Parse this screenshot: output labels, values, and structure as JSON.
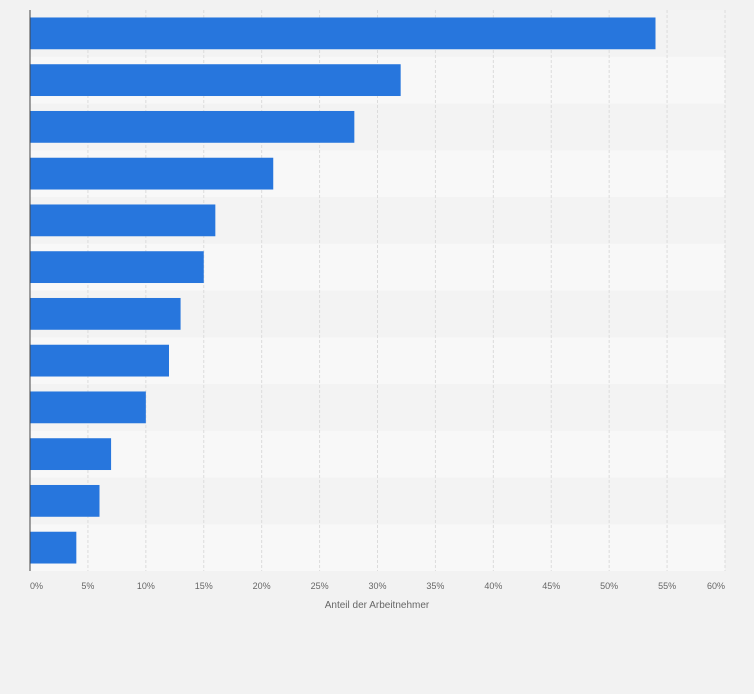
{
  "chart_data": {
    "type": "bar",
    "orientation": "horizontal",
    "title": "",
    "xlabel": "Anteil der Arbeitnehmer",
    "ylabel": "",
    "xlim": [
      0,
      60
    ],
    "tick_labels": [
      "0%",
      "5%",
      "10%",
      "15%",
      "20%",
      "25%",
      "30%",
      "35%",
      "40%",
      "45%",
      "50%",
      "55%",
      "60%"
    ],
    "categories": [
      "",
      "",
      "",
      "",
      "",
      "",
      "",
      "",
      "",
      "",
      "",
      ""
    ],
    "values": [
      54,
      32,
      28,
      21,
      16,
      15,
      13,
      12,
      10,
      7,
      6,
      4
    ],
    "value_unit": "%",
    "grid": true,
    "legend": "none",
    "colors": {
      "bar": "#2776dd",
      "background": "#f2f2f2",
      "band_dark": "#f3f3f3",
      "band_light": "#f8f8f8",
      "grid": "#dcdcdc",
      "axis": "#444444",
      "tick_text": "#666666"
    }
  }
}
